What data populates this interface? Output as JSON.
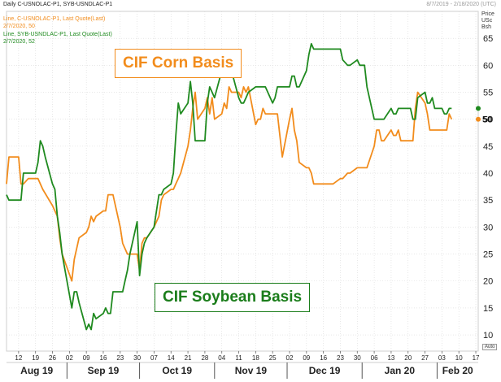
{
  "header": {
    "title": "Daily C-USNOLAC-P1, SYB-USNDLAC-P1",
    "range": "8/7/2019 - 2/18/2020 (UTC)"
  },
  "legend": {
    "corn_line1": "Line, C-USNOLAC-P1, Last Quote(Last)",
    "corn_line2": "2/7/2020, 50",
    "soy_line1": "Line, SYB-USNDLAC-P1, Last Quote(Last)",
    "soy_line2": "2/7/2020, 52"
  },
  "unit": {
    "line1": "Price",
    "line2": "USc",
    "line3": "Bsh"
  },
  "annotations": {
    "corn": "CIF Corn Basis",
    "soy": "CIF Soybean Basis"
  },
  "auto_label": "Auto",
  "colors": {
    "corn": "#f28c1c",
    "soy": "#1f8a1f",
    "grid": "#d9d9d9"
  },
  "chart_data": {
    "type": "line",
    "title": "",
    "xlabel": "",
    "ylabel": "Price USc Bsh",
    "ylim": [
      7,
      70
    ],
    "y_ticks": [
      10,
      15,
      20,
      25,
      30,
      35,
      40,
      45,
      50,
      55,
      60,
      65
    ],
    "x_range": [
      "2019-08-07",
      "2020-02-18"
    ],
    "x_tick_dates": [
      "2019-08-12",
      "2019-08-19",
      "2019-08-26",
      "2019-09-02",
      "2019-09-09",
      "2019-09-16",
      "2019-09-23",
      "2019-09-30",
      "2019-10-07",
      "2019-10-14",
      "2019-10-21",
      "2019-10-28",
      "2019-11-04",
      "2019-11-11",
      "2019-11-18",
      "2019-11-25",
      "2019-12-02",
      "2019-12-09",
      "2019-12-16",
      "2019-12-23",
      "2019-12-30",
      "2020-01-06",
      "2020-01-13",
      "2020-01-20",
      "2020-01-27",
      "2020-02-03",
      "2020-02-10",
      "2020-02-17"
    ],
    "x_tick_labels": [
      "12",
      "19",
      "26",
      "02",
      "09",
      "16",
      "23",
      "30",
      "07",
      "14",
      "21",
      "28",
      "04",
      "11",
      "18",
      "25",
      "02",
      "09",
      "16",
      "23",
      "30",
      "06",
      "13",
      "20",
      "27",
      "03",
      "10",
      "17"
    ],
    "months": [
      {
        "label": "Aug 19",
        "start": "2019-08-07"
      },
      {
        "label": "Sep 19",
        "start": "2019-09-01"
      },
      {
        "label": "Oct 19",
        "start": "2019-10-01"
      },
      {
        "label": "Nov 19",
        "start": "2019-11-01"
      },
      {
        "label": "Dec 19",
        "start": "2019-12-01"
      },
      {
        "label": "Jan 20",
        "start": "2020-01-01"
      },
      {
        "label": "Feb 20",
        "start": "2020-02-01"
      }
    ],
    "legend_position": "top-left",
    "grid": true,
    "last_values": {
      "corn": 50,
      "soy": 52
    },
    "series": [
      {
        "key": "corn",
        "points": [
          [
            "2019-08-07",
            38
          ],
          [
            "2019-08-08",
            43
          ],
          [
            "2019-08-12",
            43
          ],
          [
            "2019-08-13",
            38
          ],
          [
            "2019-08-14",
            38
          ],
          [
            "2019-08-16",
            39
          ],
          [
            "2019-08-20",
            39
          ],
          [
            "2019-08-22",
            37
          ],
          [
            "2019-08-26",
            34
          ],
          [
            "2019-08-27",
            33
          ],
          [
            "2019-08-28",
            32
          ],
          [
            "2019-08-29",
            28
          ],
          [
            "2019-08-30",
            25
          ],
          [
            "2019-09-03",
            20
          ],
          [
            "2019-09-04",
            24
          ],
          [
            "2019-09-06",
            28
          ],
          [
            "2019-09-09",
            29
          ],
          [
            "2019-09-10",
            30
          ],
          [
            "2019-09-11",
            32
          ],
          [
            "2019-09-12",
            31
          ],
          [
            "2019-09-13",
            32
          ],
          [
            "2019-09-16",
            33
          ],
          [
            "2019-09-17",
            33
          ],
          [
            "2019-09-18",
            36
          ],
          [
            "2019-09-20",
            36
          ],
          [
            "2019-09-23",
            30
          ],
          [
            "2019-09-24",
            27
          ],
          [
            "2019-09-25",
            26
          ],
          [
            "2019-09-26",
            25
          ],
          [
            "2019-09-27",
            25
          ],
          [
            "2019-09-30",
            25
          ],
          [
            "2019-10-01",
            22
          ],
          [
            "2019-10-02",
            27
          ],
          [
            "2019-10-03",
            28
          ],
          [
            "2019-10-04",
            28
          ],
          [
            "2019-10-07",
            30
          ],
          [
            "2019-10-08",
            31
          ],
          [
            "2019-10-09",
            32
          ],
          [
            "2019-10-10",
            35
          ],
          [
            "2019-10-11",
            36
          ],
          [
            "2019-10-14",
            37
          ],
          [
            "2019-10-15",
            37
          ],
          [
            "2019-10-16",
            38
          ],
          [
            "2019-10-17",
            39
          ],
          [
            "2019-10-18",
            40
          ],
          [
            "2019-10-21",
            45
          ],
          [
            "2019-10-22",
            48
          ],
          [
            "2019-10-23",
            52
          ],
          [
            "2019-10-24",
            55
          ],
          [
            "2019-10-25",
            50
          ],
          [
            "2019-10-28",
            52
          ],
          [
            "2019-10-29",
            54
          ],
          [
            "2019-10-30",
            51
          ],
          [
            "2019-10-31",
            54
          ],
          [
            "2019-11-01",
            50
          ],
          [
            "2019-11-04",
            51
          ],
          [
            "2019-11-05",
            53
          ],
          [
            "2019-11-06",
            52
          ],
          [
            "2019-11-07",
            56
          ],
          [
            "2019-11-08",
            55
          ],
          [
            "2019-11-11",
            55
          ],
          [
            "2019-11-12",
            54
          ],
          [
            "2019-11-13",
            56
          ],
          [
            "2019-11-14",
            55
          ],
          [
            "2019-11-15",
            56
          ],
          [
            "2019-11-18",
            49
          ],
          [
            "2019-11-19",
            50
          ],
          [
            "2019-11-20",
            50
          ],
          [
            "2019-11-21",
            52
          ],
          [
            "2019-11-22",
            51
          ],
          [
            "2019-11-25",
            51
          ],
          [
            "2019-11-26",
            51
          ],
          [
            "2019-11-27",
            51
          ],
          [
            "2019-11-29",
            43
          ],
          [
            "2019-12-02",
            50
          ],
          [
            "2019-12-03",
            52
          ],
          [
            "2019-12-04",
            48
          ],
          [
            "2019-12-05",
            46
          ],
          [
            "2019-12-06",
            42
          ],
          [
            "2019-12-09",
            41
          ],
          [
            "2019-12-10",
            41
          ],
          [
            "2019-12-11",
            40
          ],
          [
            "2019-12-12",
            38
          ],
          [
            "2019-12-13",
            38
          ],
          [
            "2019-12-16",
            38
          ],
          [
            "2019-12-17",
            38
          ],
          [
            "2019-12-18",
            38
          ],
          [
            "2019-12-19",
            38
          ],
          [
            "2019-12-20",
            38
          ],
          [
            "2019-12-23",
            39
          ],
          [
            "2019-12-24",
            39
          ],
          [
            "2019-12-26",
            40
          ],
          [
            "2019-12-27",
            40
          ],
          [
            "2019-12-30",
            41
          ],
          [
            "2019-12-31",
            41
          ],
          [
            "2020-01-02",
            41
          ],
          [
            "2020-01-03",
            41
          ],
          [
            "2020-01-06",
            45
          ],
          [
            "2020-01-07",
            48
          ],
          [
            "2020-01-08",
            48
          ],
          [
            "2020-01-09",
            46
          ],
          [
            "2020-01-10",
            46
          ],
          [
            "2020-01-13",
            48
          ],
          [
            "2020-01-14",
            47
          ],
          [
            "2020-01-15",
            47
          ],
          [
            "2020-01-16",
            48
          ],
          [
            "2020-01-17",
            46
          ],
          [
            "2020-01-21",
            46
          ],
          [
            "2020-01-22",
            46
          ],
          [
            "2020-01-23",
            52
          ],
          [
            "2020-01-24",
            55
          ],
          [
            "2020-01-27",
            53
          ],
          [
            "2020-01-28",
            51
          ],
          [
            "2020-01-29",
            48
          ],
          [
            "2020-01-30",
            48
          ],
          [
            "2020-01-31",
            48
          ],
          [
            "2020-02-03",
            48
          ],
          [
            "2020-02-04",
            48
          ],
          [
            "2020-02-05",
            48
          ],
          [
            "2020-02-06",
            51
          ],
          [
            "2020-02-07",
            50
          ]
        ]
      },
      {
        "key": "soy",
        "points": [
          [
            "2019-08-07",
            36
          ],
          [
            "2019-08-08",
            35
          ],
          [
            "2019-08-12",
            35
          ],
          [
            "2019-08-13",
            35
          ],
          [
            "2019-08-14",
            40
          ],
          [
            "2019-08-19",
            40
          ],
          [
            "2019-08-20",
            42
          ],
          [
            "2019-08-21",
            46
          ],
          [
            "2019-08-22",
            45
          ],
          [
            "2019-08-23",
            43
          ],
          [
            "2019-08-26",
            38
          ],
          [
            "2019-08-27",
            37
          ],
          [
            "2019-08-28",
            32
          ],
          [
            "2019-08-29",
            29
          ],
          [
            "2019-08-30",
            25
          ],
          [
            "2019-09-03",
            15
          ],
          [
            "2019-09-04",
            18
          ],
          [
            "2019-09-05",
            18
          ],
          [
            "2019-09-06",
            16
          ],
          [
            "2019-09-09",
            11
          ],
          [
            "2019-09-10",
            12
          ],
          [
            "2019-09-11",
            11
          ],
          [
            "2019-09-12",
            14
          ],
          [
            "2019-09-13",
            13
          ],
          [
            "2019-09-16",
            14
          ],
          [
            "2019-09-17",
            15
          ],
          [
            "2019-09-18",
            14
          ],
          [
            "2019-09-19",
            14
          ],
          [
            "2019-09-20",
            18
          ],
          [
            "2019-09-23",
            18
          ],
          [
            "2019-09-24",
            18
          ],
          [
            "2019-09-25",
            20
          ],
          [
            "2019-09-26",
            22
          ],
          [
            "2019-09-27",
            25
          ],
          [
            "2019-09-30",
            31
          ],
          [
            "2019-10-01",
            21
          ],
          [
            "2019-10-02",
            25
          ],
          [
            "2019-10-03",
            27
          ],
          [
            "2019-10-04",
            28
          ],
          [
            "2019-10-07",
            30
          ],
          [
            "2019-10-08",
            33
          ],
          [
            "2019-10-09",
            36
          ],
          [
            "2019-10-10",
            36
          ],
          [
            "2019-10-11",
            37
          ],
          [
            "2019-10-14",
            38
          ],
          [
            "2019-10-15",
            40
          ],
          [
            "2019-10-16",
            47
          ],
          [
            "2019-10-17",
            53
          ],
          [
            "2019-10-18",
            51
          ],
          [
            "2019-10-21",
            53
          ],
          [
            "2019-10-22",
            57
          ],
          [
            "2019-10-23",
            53
          ],
          [
            "2019-10-24",
            46
          ],
          [
            "2019-10-25",
            46
          ],
          [
            "2019-10-28",
            46
          ],
          [
            "2019-10-29",
            53
          ],
          [
            "2019-10-30",
            56
          ],
          [
            "2019-10-31",
            55
          ],
          [
            "2019-11-01",
            54
          ],
          [
            "2019-11-04",
            59
          ],
          [
            "2019-11-05",
            60
          ],
          [
            "2019-11-06",
            61
          ],
          [
            "2019-11-07",
            59
          ],
          [
            "2019-11-08",
            59
          ],
          [
            "2019-11-11",
            54
          ],
          [
            "2019-11-12",
            53
          ],
          [
            "2019-11-13",
            53
          ],
          [
            "2019-11-14",
            54
          ],
          [
            "2019-11-15",
            55
          ],
          [
            "2019-11-18",
            56
          ],
          [
            "2019-11-19",
            56
          ],
          [
            "2019-11-20",
            56
          ],
          [
            "2019-11-21",
            56
          ],
          [
            "2019-11-22",
            56
          ],
          [
            "2019-11-25",
            53
          ],
          [
            "2019-11-26",
            54
          ],
          [
            "2019-11-27",
            56
          ],
          [
            "2019-11-29",
            56
          ],
          [
            "2019-12-02",
            56
          ],
          [
            "2019-12-03",
            58
          ],
          [
            "2019-12-04",
            58
          ],
          [
            "2019-12-05",
            56
          ],
          [
            "2019-12-06",
            56
          ],
          [
            "2019-12-09",
            59
          ],
          [
            "2019-12-10",
            62
          ],
          [
            "2019-12-11",
            64
          ],
          [
            "2019-12-12",
            63
          ],
          [
            "2019-12-13",
            63
          ],
          [
            "2019-12-16",
            63
          ],
          [
            "2019-12-17",
            63
          ],
          [
            "2019-12-18",
            63
          ],
          [
            "2019-12-19",
            63
          ],
          [
            "2019-12-20",
            63
          ],
          [
            "2019-12-23",
            63
          ],
          [
            "2019-12-24",
            61
          ],
          [
            "2019-12-26",
            60
          ],
          [
            "2019-12-27",
            60
          ],
          [
            "2019-12-30",
            61
          ],
          [
            "2019-12-31",
            60
          ],
          [
            "2020-01-02",
            60
          ],
          [
            "2020-01-03",
            56
          ],
          [
            "2020-01-06",
            50
          ],
          [
            "2020-01-07",
            50
          ],
          [
            "2020-01-08",
            50
          ],
          [
            "2020-01-09",
            50
          ],
          [
            "2020-01-10",
            50
          ],
          [
            "2020-01-13",
            52
          ],
          [
            "2020-01-14",
            51
          ],
          [
            "2020-01-15",
            51
          ],
          [
            "2020-01-16",
            52
          ],
          [
            "2020-01-17",
            52
          ],
          [
            "2020-01-21",
            52
          ],
          [
            "2020-01-22",
            50
          ],
          [
            "2020-01-23",
            50
          ],
          [
            "2020-01-24",
            54
          ],
          [
            "2020-01-27",
            55
          ],
          [
            "2020-01-28",
            53
          ],
          [
            "2020-01-29",
            53
          ],
          [
            "2020-01-30",
            54
          ],
          [
            "2020-01-31",
            52
          ],
          [
            "2020-02-03",
            52
          ],
          [
            "2020-02-04",
            51
          ],
          [
            "2020-02-05",
            51
          ],
          [
            "2020-02-06",
            52
          ],
          [
            "2020-02-07",
            52
          ]
        ]
      }
    ]
  }
}
